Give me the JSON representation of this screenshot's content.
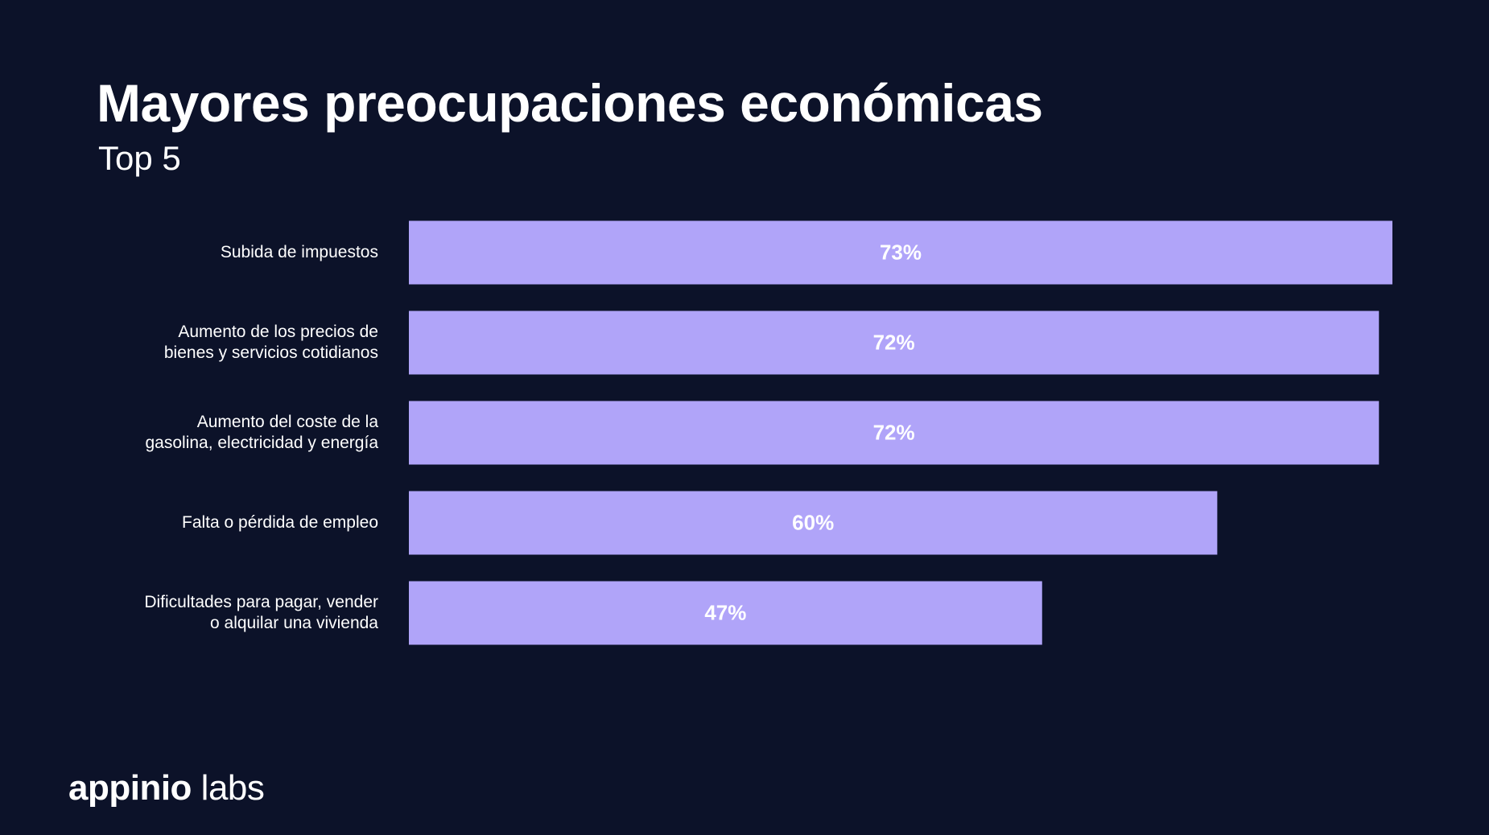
{
  "header": {
    "title": "Mayores preocupaciones económicas",
    "subtitle": "Top 5"
  },
  "brand": {
    "logo_text_bold": "appinio",
    "logo_text_light": " labs"
  },
  "colors": {
    "background": "#0c1229",
    "bar": "#b0a4f9",
    "text": "#ffffff"
  },
  "chart_data": {
    "type": "bar",
    "orientation": "horizontal",
    "title": "Mayores preocupaciones económicas",
    "subtitle": "Top 5",
    "categories": [
      "Subida de impuestos",
      "Aumento de los precios de bienes y servicios cotidianos",
      "Aumento del coste de la gasolina, electricidad y energía",
      "Falta o pérdida de empleo",
      "Dificultades para pagar, vender o alquilar una vivienda"
    ],
    "category_lines": [
      [
        "Subida de impuestos"
      ],
      [
        "Aumento de los precios de",
        "bienes y servicios cotidianos"
      ],
      [
        "Aumento del coste de la",
        "gasolina, electricidad y energía"
      ],
      [
        "Falta o pérdida de empleo"
      ],
      [
        "Dificultades para pagar, vender",
        "o alquilar una vivienda"
      ]
    ],
    "values": [
      73,
      72,
      72,
      60,
      47
    ],
    "value_labels": [
      "73%",
      "72%",
      "72%",
      "60%",
      "47%"
    ],
    "unit": "%",
    "xlim": [
      0,
      73
    ],
    "grid": false,
    "legend": "none"
  }
}
